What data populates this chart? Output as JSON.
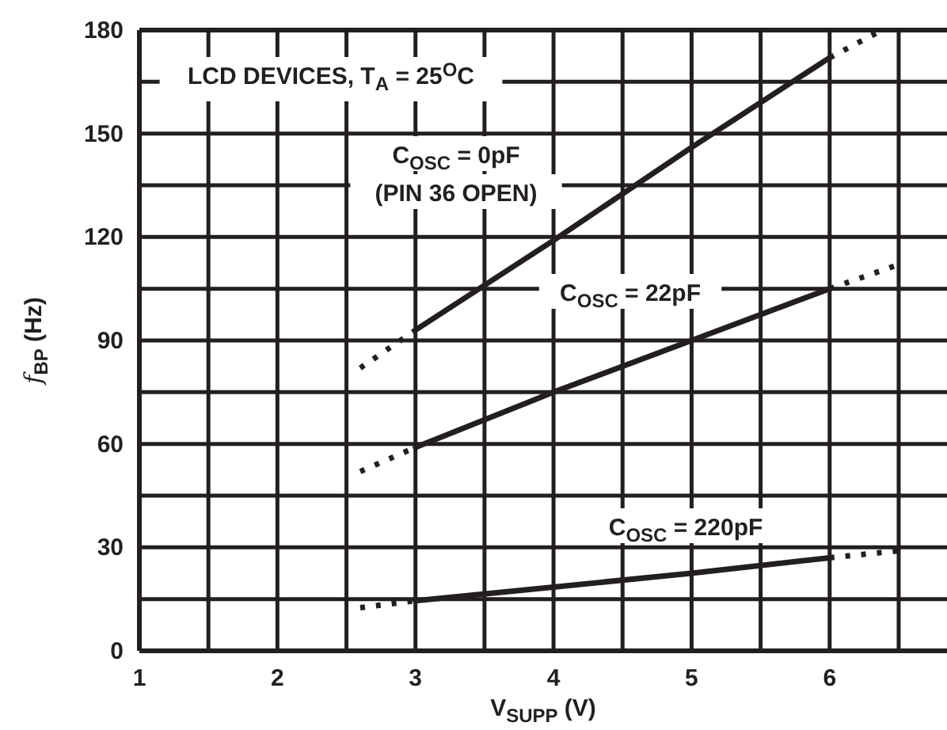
{
  "chart_data": {
    "type": "line",
    "xlabel": "V$_{SUPP}$ (V)",
    "ylabel": "f$_{BP}$ (Hz)",
    "xlim": [
      1,
      6.85
    ],
    "ylim": [
      0,
      180
    ],
    "xticks": [
      1,
      {
        "value": 1.5,
        "label": null
      },
      2,
      {
        "value": 2.5,
        "label": null
      },
      3,
      {
        "value": 3.5,
        "label": null
      },
      4,
      {
        "value": 4.5,
        "label": null
      },
      5,
      {
        "value": 5.5,
        "label": null
      },
      6,
      {
        "value": 6.5,
        "label": null
      }
    ],
    "yticks": [
      0,
      {
        "value": 15,
        "label": null
      },
      30,
      {
        "value": 45,
        "label": null
      },
      60,
      {
        "value": 75,
        "label": null
      },
      90,
      {
        "value": 105,
        "label": null
      },
      120,
      {
        "value": 135,
        "label": null
      },
      150,
      {
        "value": 165,
        "label": null
      },
      180
    ],
    "grid": true,
    "series": [
      {
        "color": "#231f20",
        "line_style": "solid",
        "x": [
          3,
          4,
          5,
          6
        ],
        "values": [
          93,
          119,
          146,
          172
        ]
      },
      {
        "color": "#231f20",
        "line_style": "dotted",
        "x": [
          2.6,
          3
        ],
        "values": [
          82,
          93
        ]
      },
      {
        "color": "#231f20",
        "line_style": "dotted",
        "x": [
          6,
          6.38
        ],
        "values": [
          172,
          180
        ]
      },
      {
        "color": "#231f20",
        "line_style": "solid",
        "x": [
          3,
          4,
          5,
          6
        ],
        "values": [
          59,
          75,
          90,
          105
        ]
      },
      {
        "color": "#231f20",
        "line_style": "dotted",
        "x": [
          2.6,
          3
        ],
        "values": [
          52,
          59
        ]
      },
      {
        "color": "#231f20",
        "line_style": "dotted",
        "x": [
          6,
          6.5
        ],
        "values": [
          105,
          112
        ]
      },
      {
        "color": "#231f20",
        "line_style": "solid",
        "x": [
          3,
          4,
          5,
          6
        ],
        "values": [
          14.5,
          18.5,
          22.5,
          27
        ]
      },
      {
        "color": "#231f20",
        "line_style": "dotted",
        "x": [
          2.6,
          3
        ],
        "values": [
          12.5,
          14.5
        ]
      },
      {
        "color": "#231f20",
        "line_style": "dotted",
        "x": [
          6,
          6.5
        ],
        "values": [
          27,
          29
        ]
      }
    ],
    "annotations": [
      "LCD DEVICES, T$_{A}$ = 25$^{O}$C",
      "C$_{OSC}$ = 0pF",
      "(PIN 36 OPEN)",
      "C$_{OSC}$ = 22pF",
      "C$_{OSC}$ = 220pF"
    ]
  }
}
